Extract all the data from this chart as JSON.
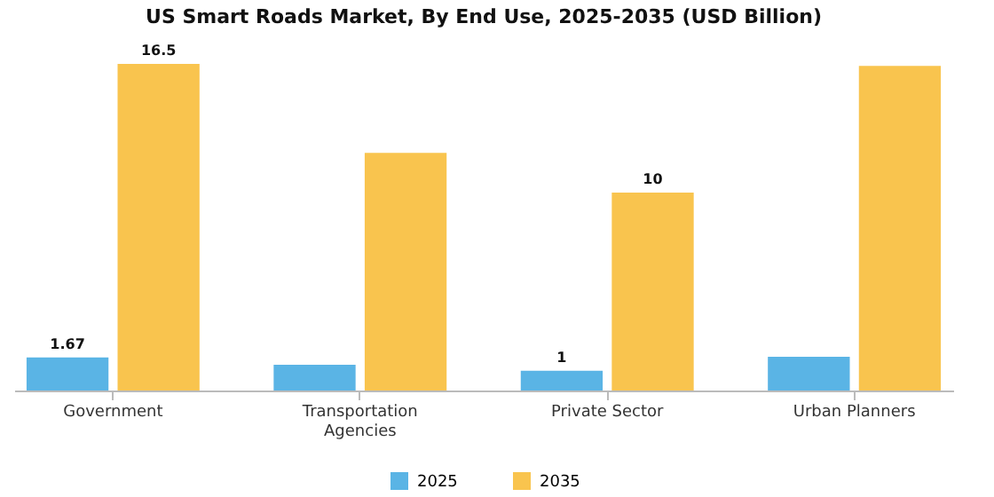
{
  "chart_data": {
    "type": "bar",
    "title": "US Smart Roads Market, By End Use, 2025-2035 (USD Billion)",
    "categories": [
      "Government",
      "Transportation Agencies",
      "Private Sector",
      "Urban Planners"
    ],
    "series": [
      {
        "name": "2025",
        "color": "#5ab4e5",
        "values": [
          1.67,
          1.3,
          1,
          1.7
        ],
        "value_labels": [
          "1.67",
          null,
          "1",
          null
        ]
      },
      {
        "name": "2035",
        "color": "#f9c44e",
        "values": [
          16.5,
          12,
          10,
          16.4
        ],
        "value_labels": [
          "16.5",
          null,
          "10",
          null
        ]
      }
    ],
    "tick_labels": "x",
    "legend": "bottom"
  }
}
